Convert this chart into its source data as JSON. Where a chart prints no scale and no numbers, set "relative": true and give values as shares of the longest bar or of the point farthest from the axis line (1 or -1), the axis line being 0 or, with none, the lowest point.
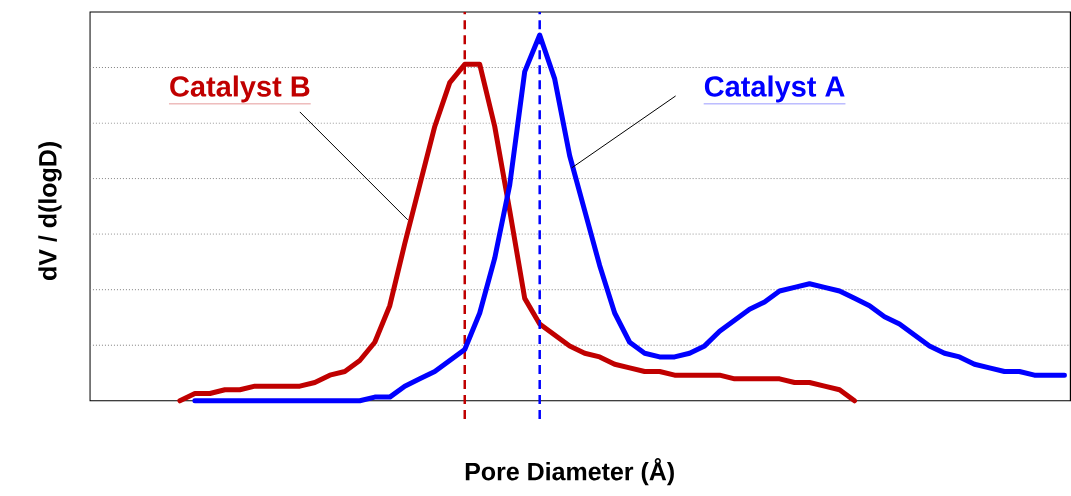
{
  "chart_data": {
    "type": "line",
    "relative": true,
    "xlabel": "Pore Diameter (Å)",
    "ylabel": "dV / d(logD)",
    "grid": "y",
    "categories": [
      null,
      null,
      null,
      null,
      null,
      null,
      null,
      null,
      null,
      null,
      null,
      null,
      null,
      null,
      null,
      null,
      null,
      null,
      null,
      null,
      null,
      null,
      null,
      null,
      null,
      null,
      null,
      null,
      null,
      null,
      null,
      null,
      null,
      null,
      null,
      null,
      null,
      null,
      null,
      null,
      null,
      null,
      null,
      null,
      null,
      null,
      null,
      null,
      null,
      null,
      null,
      null,
      null,
      null,
      null,
      null,
      null,
      null,
      null,
      null
    ],
    "series": [
      {
        "name": "Catalyst B",
        "color": "#c00000",
        "values": [
          0,
          0.02,
          0.02,
          0.03,
          0.03,
          0.04,
          0.04,
          0.04,
          0.04,
          0.05,
          0.07,
          0.08,
          0.11,
          0.16,
          0.26,
          0.43,
          0.59,
          0.75,
          0.87,
          0.92,
          0.92,
          0.75,
          0.52,
          0.28,
          0.21,
          0.18,
          0.15,
          0.13,
          0.12,
          0.1,
          0.09,
          0.08,
          0.08,
          0.07,
          0.07,
          0.07,
          0.07,
          0.06,
          0.06,
          0.06,
          0.06,
          0.05,
          0.05,
          0.04,
          0.03,
          0,
          null,
          null,
          null,
          null,
          null,
          null,
          null,
          null,
          null,
          null,
          null,
          null,
          null,
          null
        ]
      },
      {
        "name": "Catalyst A",
        "color": "#0000ff",
        "values": [
          null,
          0,
          0,
          0,
          0,
          0,
          0,
          0,
          0,
          0,
          0,
          0,
          0,
          0.01,
          0.01,
          0.04,
          0.06,
          0.08,
          0.11,
          0.14,
          0.24,
          0.39,
          0.59,
          0.9,
          1,
          0.88,
          0.67,
          0.52,
          0.37,
          0.24,
          0.16,
          0.13,
          0.12,
          0.12,
          0.13,
          0.15,
          0.19,
          0.22,
          0.25,
          0.27,
          0.3,
          0.31,
          0.32,
          0.31,
          0.3,
          0.28,
          0.26,
          0.23,
          0.21,
          0.18,
          0.15,
          0.13,
          0.12,
          0.1,
          0.09,
          0.08,
          0.08,
          0.07,
          0.07,
          0.07
        ]
      }
    ]
  }
}
